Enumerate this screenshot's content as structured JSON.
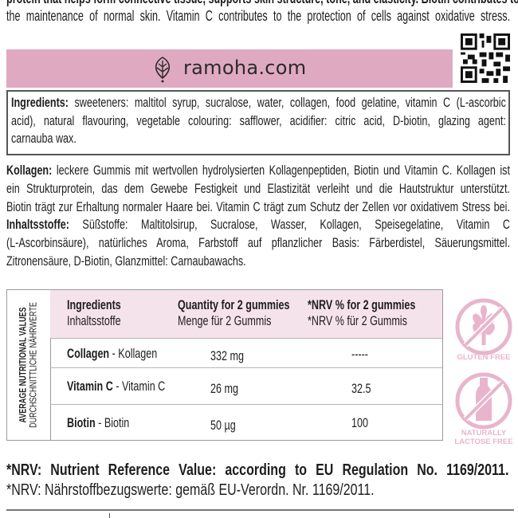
{
  "intro_en": {
    "lines": [
      "protein that helps form connective tissue, supports skin structure, tone, and elasticity. Biotin contributes to",
      "the maintenance of normal skin. Vitamin C contributes to the protection of cells against oxidative stress."
    ]
  },
  "banner": {
    "website": "ramoha.com",
    "logo_icon": "leaf-icon",
    "color": "#e0a9c2"
  },
  "qr_icon": "qr-code-icon",
  "ingredients_en": {
    "label": "Ingredients:",
    "lines": [
      "sweeteners: maltitol syrup, sucralose, water, collagen, food gelatine, vitamin C (L-ascorbic",
      "acid), natural flavouring, vegetable colouring: safflower, acidifier: citric acid, D-biotin, glazing agent:",
      "carnauba wax."
    ]
  },
  "description_de": {
    "label": "Kollagen:",
    "lines": [
      "leckere Gummis mit wertvollen hydrolysierten Kollagenpeptiden, Biotin und Vitamin C. Kollagen ist",
      "ein Strukturprotein, das dem Gewebe Festigkeit und Elastizität verleiht und die Hautstruktur unterstützt.",
      "Biotin trägt zur Erhaltung normaler Haare bei. Vitamin C trägt zum Schutz der Zellen vor oxidativem Stress bei."
    ]
  },
  "ingredients_de": {
    "label": "Inhaltsstoffe:",
    "lines": [
      "Süßstoffe: Maltitolsirup, Sucralose, Wasser, Kollagen, Speisegelatine, Vitamin C",
      "(L-Ascorbinsäure), natürliches Aroma, Farbstoff auf pflanzlicher Basis: Färberdistel, Säuerungsmittel.",
      "Zitronensäure, D-Biotin, Glanzmittel: Carnaubawachs."
    ]
  },
  "nutrition_table": {
    "side_title_en": "AVERAGE NUTRITIONAL VALUES",
    "side_title_de": "DURCHSCHNITTLICHE NÄHRWERTE",
    "header_color": "#f5e3eb",
    "columns": [
      {
        "en": "Ingredients",
        "de": "Inhaltsstoffe"
      },
      {
        "en": "Quantity for 2 gummies",
        "de": "Menge für 2 Gummis"
      },
      {
        "en": "*NRV % for 2 gummies",
        "de": "*NRV % für 2 Gummis"
      }
    ],
    "rows": [
      {
        "name_en": "Collagen",
        "name_de": " - Kollagen",
        "quantity": "332 mg",
        "nrv": "-----"
      },
      {
        "name_en": "Vitamin C",
        "name_de": " - Vitamin C",
        "quantity": "26 mg",
        "nrv": "32.5"
      },
      {
        "name_en": "Biotin",
        "name_de": " - Biotin",
        "quantity": "50 µg",
        "nrv": "100"
      }
    ]
  },
  "badges": {
    "color": "#e8b5cc",
    "gluten_free": {
      "icon": "wheat-crossed-icon",
      "label": "GLUTEN FREE"
    },
    "lactose_free": {
      "icon": "milk-bottle-crossed-icon",
      "label_line1": "NATURALLY",
      "label_line2": "LACTOSE FREE"
    }
  },
  "footnote": {
    "en": "*NRV: Nutrient Reference Value: according to EU Regulation No. 1169/2011.",
    "de": "*NRV: Nährstoffbezugswerte: gemäß EU-Verordn. Nr. 1169/2011."
  }
}
